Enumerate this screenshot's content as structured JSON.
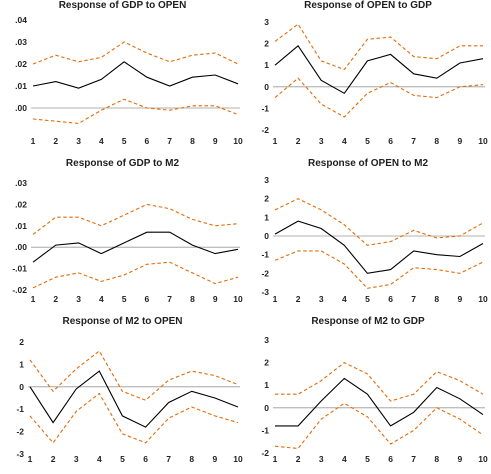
{
  "colors": {
    "irf": "#000000",
    "band": "#e36c09",
    "axis": "#999999"
  },
  "chart_data": [
    {
      "type": "line",
      "title": "Response of GDP to OPEN",
      "x": [
        1,
        2,
        3,
        4,
        5,
        6,
        7,
        8,
        9,
        10
      ],
      "ylim": [
        -0.01,
        0.04
      ],
      "yticks": [
        -0.01,
        0.0,
        0.01,
        0.02,
        0.03,
        0.04
      ],
      "ytick_labels": [
        "",
        ".00",
        ".01",
        ".02",
        ".03",
        ".04"
      ],
      "series": [
        {
          "role": "response",
          "values": [
            0.01,
            0.012,
            0.009,
            0.013,
            0.021,
            0.014,
            0.01,
            0.014,
            0.015,
            0.011
          ]
        },
        {
          "role": "upper",
          "values": [
            0.02,
            0.024,
            0.021,
            0.023,
            0.03,
            0.025,
            0.021,
            0.024,
            0.025,
            0.02
          ]
        },
        {
          "role": "lower",
          "values": [
            -0.005,
            -0.006,
            -0.007,
            -0.001,
            0.004,
            0.0,
            -0.001,
            0.001,
            0.001,
            -0.003
          ]
        }
      ]
    },
    {
      "type": "line",
      "title": "Response of OPEN to GDP",
      "x": [
        1,
        2,
        3,
        4,
        5,
        6,
        7,
        8,
        9,
        10
      ],
      "ylim": [
        -2,
        3
      ],
      "yticks": [
        -2,
        -1,
        0,
        1,
        2,
        3
      ],
      "ytick_labels": [
        "-2",
        "-1",
        "0",
        "1",
        "2",
        "3"
      ],
      "series": [
        {
          "role": "response",
          "values": [
            1.0,
            1.9,
            0.3,
            -0.3,
            1.2,
            1.5,
            0.6,
            0.4,
            1.1,
            1.3
          ]
        },
        {
          "role": "upper",
          "values": [
            2.1,
            2.9,
            1.2,
            0.8,
            2.2,
            2.3,
            1.4,
            1.3,
            1.9,
            1.9
          ]
        },
        {
          "role": "lower",
          "values": [
            -0.5,
            0.4,
            -0.8,
            -1.4,
            -0.3,
            0.2,
            -0.4,
            -0.5,
            0.0,
            0.1
          ]
        }
      ]
    },
    {
      "type": "line",
      "title": "Response of GDP to M2",
      "x": [
        1,
        2,
        3,
        4,
        5,
        6,
        7,
        8,
        9,
        10
      ],
      "ylim": [
        -0.02,
        0.03
      ],
      "yticks": [
        -0.02,
        -0.01,
        0.0,
        0.01,
        0.02,
        0.03
      ],
      "ytick_labels": [
        "-.02",
        "-.01",
        ".00",
        ".01",
        ".02",
        ".03"
      ],
      "series": [
        {
          "role": "response",
          "values": [
            -0.007,
            0.001,
            0.002,
            -0.003,
            0.002,
            0.007,
            0.007,
            0.001,
            -0.003,
            -0.001
          ]
        },
        {
          "role": "upper",
          "values": [
            0.006,
            0.014,
            0.014,
            0.01,
            0.015,
            0.02,
            0.018,
            0.013,
            0.01,
            0.011
          ]
        },
        {
          "role": "lower",
          "values": [
            -0.019,
            -0.014,
            -0.012,
            -0.016,
            -0.013,
            -0.008,
            -0.007,
            -0.012,
            -0.017,
            -0.014
          ]
        }
      ]
    },
    {
      "type": "line",
      "title": "Response of OPEN to M2",
      "x": [
        1,
        2,
        3,
        4,
        5,
        6,
        7,
        8,
        9,
        10
      ],
      "ylim": [
        -3,
        3
      ],
      "yticks": [
        -3,
        -2,
        -1,
        0,
        1,
        2,
        3
      ],
      "ytick_labels": [
        "-3",
        "-2",
        "-1",
        "0",
        "1",
        "2",
        "3"
      ],
      "series": [
        {
          "role": "response",
          "values": [
            0.1,
            0.8,
            0.4,
            -0.5,
            -2.0,
            -1.8,
            -0.8,
            -1.0,
            -1.1,
            -0.4
          ]
        },
        {
          "role": "upper",
          "values": [
            1.4,
            2.0,
            1.4,
            0.6,
            -0.5,
            -0.3,
            0.3,
            -0.1,
            0.0,
            0.7
          ]
        },
        {
          "role": "lower",
          "values": [
            -1.3,
            -0.8,
            -0.8,
            -1.5,
            -2.8,
            -2.6,
            -1.7,
            -1.8,
            -2.0,
            -1.4
          ]
        }
      ]
    },
    {
      "type": "line",
      "title": "Response of M2 to OPEN",
      "x": [
        1,
        2,
        3,
        4,
        5,
        6,
        7,
        8,
        9,
        10
      ],
      "ylim": [
        -3,
        2
      ],
      "yticks": [
        -3,
        -2,
        -1,
        0,
        1,
        2
      ],
      "ytick_labels": [
        "-3",
        "-2",
        "-1",
        "0",
        "1",
        "2"
      ],
      "series": [
        {
          "role": "response",
          "values": [
            0.0,
            -1.6,
            -0.1,
            0.7,
            -1.3,
            -1.8,
            -0.7,
            -0.2,
            -0.5,
            -0.9
          ]
        },
        {
          "role": "upper",
          "values": [
            1.2,
            -0.2,
            0.8,
            1.6,
            -0.2,
            -0.6,
            0.3,
            0.7,
            0.5,
            0.1
          ]
        },
        {
          "role": "lower",
          "values": [
            -1.3,
            -2.5,
            -1.1,
            -0.3,
            -2.1,
            -2.5,
            -1.4,
            -0.9,
            -1.3,
            -1.6
          ]
        }
      ]
    },
    {
      "type": "line",
      "title": "Response of M2 to GDP",
      "x": [
        1,
        2,
        3,
        4,
        5,
        6,
        7,
        8,
        9,
        10
      ],
      "ylim": [
        -2,
        3
      ],
      "yticks": [
        -2,
        -1,
        0,
        1,
        2,
        3
      ],
      "ytick_labels": [
        "-2",
        "-1",
        "0",
        "1",
        "2",
        "3"
      ],
      "series": [
        {
          "role": "response",
          "values": [
            -0.8,
            -0.8,
            0.3,
            1.3,
            0.6,
            -0.8,
            -0.2,
            0.9,
            0.4,
            -0.3
          ]
        },
        {
          "role": "upper",
          "values": [
            0.6,
            0.6,
            1.2,
            2.0,
            1.5,
            0.3,
            0.6,
            1.6,
            1.2,
            0.6
          ]
        },
        {
          "role": "lower",
          "values": [
            -1.7,
            -1.8,
            -0.5,
            0.2,
            -0.4,
            -1.6,
            -1.0,
            0.0,
            -0.5,
            -1.2
          ]
        }
      ]
    }
  ]
}
